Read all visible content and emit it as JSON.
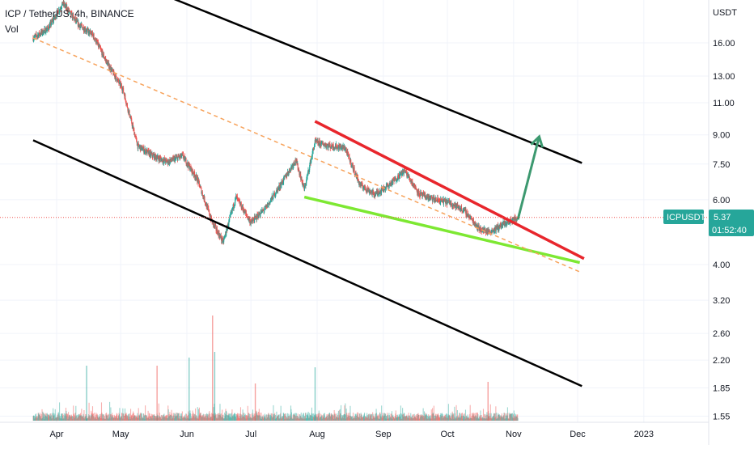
{
  "header": {
    "symbol_line": "ICP / TetherUS, 4h, BINANCE",
    "volume_label": "Vol"
  },
  "price_axis": {
    "currency": "USDT",
    "scale": "log",
    "ticks": [
      "16.00",
      "13.00",
      "11.00",
      "9.00",
      "7.50",
      "6.00",
      "4.00",
      "3.20",
      "2.60",
      "2.20",
      "1.85",
      "1.55"
    ]
  },
  "time_axis": {
    "ticks": [
      "Apr",
      "May",
      "Jun",
      "Jul",
      "Aug",
      "Sep",
      "Oct",
      "Nov",
      "Dec",
      "2023"
    ]
  },
  "price_tag": {
    "symbol": "ICPUSDT",
    "price": "5.37",
    "countdown": "01:52:40",
    "color": "#26a69a"
  },
  "colors": {
    "up": "#26a69a",
    "down": "#ef5350",
    "channel": "#000000",
    "resistance": "#e8262c",
    "support": "#7de832",
    "trend_dashed": "#f7a35c",
    "arrow": "#3d9970",
    "current_price_line": "#ef5350"
  },
  "chart_data": {
    "type": "candlestick",
    "scale": "log",
    "ylim": [
      1.5,
      22
    ],
    "xlim": [
      "2022-03-21",
      "2023-01-20"
    ],
    "series": {
      "price_path": [
        [
          "2022-03-21",
          16.5
        ],
        [
          "2022-03-28",
          17.5
        ],
        [
          "2022-04-04",
          20.5
        ],
        [
          "2022-04-11",
          18.0
        ],
        [
          "2022-04-18",
          16.8
        ],
        [
          "2022-04-25",
          14.0
        ],
        [
          "2022-05-02",
          12.0
        ],
        [
          "2022-05-09",
          8.4
        ],
        [
          "2022-05-16",
          7.9
        ],
        [
          "2022-05-23",
          7.6
        ],
        [
          "2022-05-30",
          7.9
        ],
        [
          "2022-06-06",
          6.8
        ],
        [
          "2022-06-13",
          5.2
        ],
        [
          "2022-06-18",
          4.6
        ],
        [
          "2022-06-24",
          6.1
        ],
        [
          "2022-07-01",
          5.2
        ],
        [
          "2022-07-08",
          5.7
        ],
        [
          "2022-07-15",
          6.6
        ],
        [
          "2022-07-22",
          7.7
        ],
        [
          "2022-07-26",
          6.4
        ],
        [
          "2022-07-31",
          8.6
        ],
        [
          "2022-08-07",
          8.4
        ],
        [
          "2022-08-14",
          8.3
        ],
        [
          "2022-08-21",
          6.6
        ],
        [
          "2022-08-28",
          6.2
        ],
        [
          "2022-09-04",
          6.6
        ],
        [
          "2022-09-11",
          7.2
        ],
        [
          "2022-09-18",
          6.2
        ],
        [
          "2022-09-25",
          6.0
        ],
        [
          "2022-10-02",
          5.9
        ],
        [
          "2022-10-09",
          5.6
        ],
        [
          "2022-10-16",
          5.0
        ],
        [
          "2022-10-21",
          4.9
        ],
        [
          "2022-10-26",
          5.1
        ],
        [
          "2022-11-01",
          5.3
        ],
        [
          "2022-11-03",
          5.37
        ]
      ],
      "volume_spike_dates": [
        "2022-04-15",
        "2022-05-18",
        "2022-06-02",
        "2022-06-13",
        "2022-06-14",
        "2022-07-03",
        "2022-07-31",
        "2022-10-20"
      ]
    },
    "annotations": [
      {
        "kind": "channel-upper",
        "from": [
          "2022-03-21",
          30.0
        ],
        "to": [
          "2022-12-03",
          7.55
        ]
      },
      {
        "kind": "channel-lower",
        "from": [
          "2022-03-21",
          8.7
        ],
        "to": [
          "2022-12-03",
          1.87
        ]
      },
      {
        "kind": "resistance",
        "from": [
          "2022-07-31",
          9.8
        ],
        "to": [
          "2022-12-04",
          4.15
        ]
      },
      {
        "kind": "support",
        "from": [
          "2022-07-26",
          6.1
        ],
        "to": [
          "2022-12-02",
          4.05
        ]
      },
      {
        "kind": "trend-dashed",
        "from": [
          "2022-03-21",
          16.5
        ],
        "to": [
          "2022-12-03",
          3.8
        ]
      },
      {
        "kind": "target-arrow",
        "from": [
          "2022-11-03",
          5.3
        ],
        "to": [
          "2022-11-13",
          8.9
        ]
      },
      {
        "kind": "current-price-line",
        "value": 5.37
      }
    ]
  }
}
